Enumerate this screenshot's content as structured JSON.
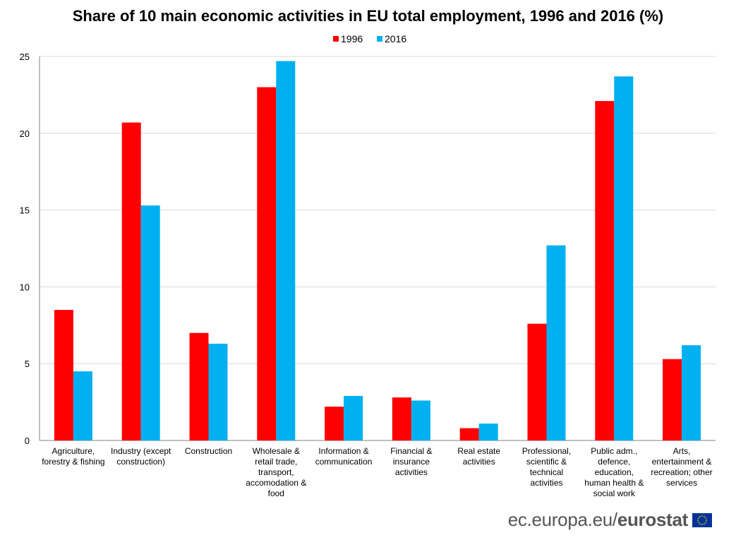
{
  "chart_data": {
    "type": "bar",
    "title": "Share of 10 main economic activities in EU total employment, 1996 and 2016 (%)",
    "categories": [
      [
        "Agriculture,",
        "forestry & fishing"
      ],
      [
        "Industry (except",
        "construction)"
      ],
      [
        "Construction"
      ],
      [
        "Wholesale &",
        "retail trade,",
        "transport,",
        "accomodation &",
        "food"
      ],
      [
        "Information &",
        "communication"
      ],
      [
        "Financial &",
        "insurance",
        "activities"
      ],
      [
        "Real estate",
        "activities"
      ],
      [
        "Professional,",
        "scientific &",
        "technical",
        "activities"
      ],
      [
        "Public adm.,",
        "defence,",
        "education,",
        "human health &",
        "social work"
      ],
      [
        "Arts,",
        "entertainment &",
        "recreation; other",
        "services"
      ]
    ],
    "series": [
      {
        "name": "1996",
        "color": "#ff0000",
        "values": [
          8.5,
          20.7,
          7.0,
          23.0,
          2.2,
          2.8,
          0.8,
          7.6,
          22.1,
          5.3
        ]
      },
      {
        "name": "2016",
        "color": "#00b0f0",
        "values": [
          4.5,
          15.3,
          6.3,
          24.7,
          2.9,
          2.6,
          1.1,
          12.7,
          23.7,
          6.2
        ]
      }
    ],
    "ylim": [
      0,
      25
    ],
    "yticks": [
      0,
      5,
      10,
      15,
      20,
      25
    ],
    "grid": true,
    "legend": "top-center",
    "xlabel": "",
    "ylabel": ""
  },
  "footer": {
    "url": "ec.europa.eu/",
    "brand": "eurostat"
  }
}
